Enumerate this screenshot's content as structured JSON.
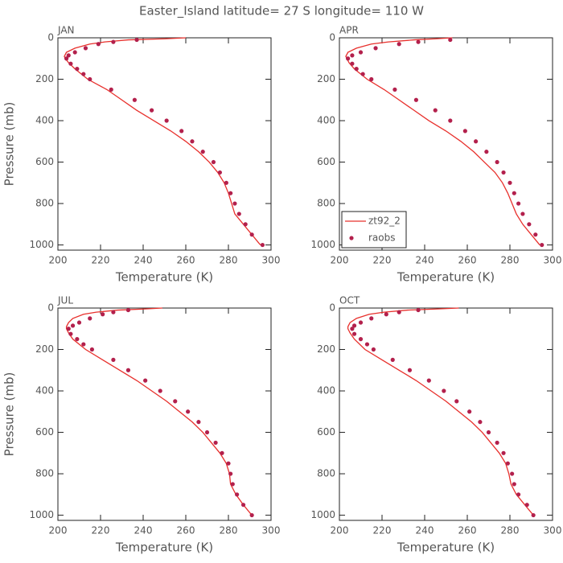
{
  "title": "Easter_Island  latitude= 27 S longitude= 110 W",
  "chart_data": [
    {
      "type": "line",
      "title": "JAN",
      "x_label": "Temperature (K)",
      "y_label": "Pressure (mb)",
      "xlim": [
        200,
        300
      ],
      "ylim": [
        1025,
        0
      ],
      "xticks": [
        200,
        220,
        240,
        260,
        280,
        300
      ],
      "yticks": [
        0,
        200,
        400,
        600,
        800,
        1000
      ],
      "series": [
        {
          "name": "zt92_2",
          "type": "line",
          "color": "#e8302c",
          "x": [
            260,
            250,
            233,
            222,
            215,
            208,
            204,
            203,
            203.5,
            205,
            208,
            214,
            223,
            230,
            237,
            245,
            253,
            260,
            266,
            271,
            275,
            278,
            280,
            281.5,
            283,
            287,
            291,
            295
          ],
          "y": [
            0,
            5,
            10,
            20,
            30,
            50,
            70,
            90,
            100,
            120,
            150,
            200,
            250,
            300,
            350,
            400,
            450,
            500,
            550,
            600,
            650,
            700,
            750,
            800,
            850,
            900,
            950,
            1000
          ]
        },
        {
          "name": "raobs",
          "type": "scatter",
          "color": "#b3204c",
          "x": [
            237,
            226,
            219,
            213,
            208,
            205,
            204,
            206,
            209,
            212,
            215,
            225,
            236,
            244,
            251,
            258,
            263,
            268,
            273,
            276,
            279,
            281,
            283,
            285,
            288,
            291,
            296
          ],
          "y": [
            10,
            20,
            30,
            50,
            70,
            85,
            100,
            125,
            150,
            175,
            200,
            250,
            300,
            350,
            400,
            450,
            500,
            550,
            600,
            650,
            700,
            750,
            800,
            850,
            900,
            950,
            1000
          ]
        }
      ]
    },
    {
      "type": "line",
      "title": "APR",
      "x_label": "Temperature (K)",
      "legend": "lower left",
      "xlim": [
        200,
        300
      ],
      "ylim": [
        1025,
        0
      ],
      "xticks": [
        200,
        220,
        240,
        260,
        280,
        300
      ],
      "yticks": [
        0,
        200,
        400,
        600,
        800,
        1000
      ],
      "series": [
        {
          "name": "zt92_2",
          "type": "line",
          "color": "#e8302c",
          "x": [
            253,
            245,
            235,
            223,
            215,
            208,
            204,
            203,
            203.5,
            204.5,
            207,
            213,
            221,
            228,
            235,
            242,
            250,
            257,
            263,
            268,
            273,
            276.5,
            279,
            281,
            283,
            286,
            290,
            294
          ],
          "y": [
            0,
            5,
            10,
            20,
            30,
            50,
            70,
            90,
            100,
            120,
            150,
            200,
            250,
            300,
            350,
            400,
            450,
            500,
            550,
            600,
            650,
            700,
            750,
            800,
            850,
            900,
            950,
            1000
          ]
        },
        {
          "name": "raobs",
          "type": "scatter",
          "color": "#b3204c",
          "x": [
            252,
            237,
            228,
            217,
            210,
            206,
            204,
            206,
            208,
            211,
            215,
            226,
            236,
            245,
            252,
            259,
            264,
            269,
            274,
            277,
            280,
            282,
            284,
            286,
            289,
            292,
            295
          ],
          "y": [
            10,
            20,
            30,
            50,
            70,
            85,
            100,
            125,
            150,
            175,
            200,
            250,
            300,
            350,
            400,
            450,
            500,
            550,
            600,
            650,
            700,
            750,
            800,
            850,
            900,
            950,
            1000
          ]
        }
      ]
    },
    {
      "type": "line",
      "title": "JUL",
      "x_label": "Temperature (K)",
      "y_label": "Pressure (mb)",
      "xlim": [
        200,
        300
      ],
      "ylim": [
        1025,
        0
      ],
      "xticks": [
        200,
        220,
        240,
        260,
        280,
        300
      ],
      "yticks": [
        0,
        200,
        400,
        600,
        800,
        1000
      ],
      "series": [
        {
          "name": "zt92_2",
          "type": "line",
          "color": "#e8302c",
          "x": [
            249,
            240,
            228,
            218,
            212,
            207,
            205,
            204,
            204,
            205,
            207,
            213,
            221,
            229,
            237,
            244,
            251,
            257,
            263,
            268,
            272,
            276,
            279,
            280.5,
            281,
            283.5,
            287,
            291
          ],
          "y": [
            0,
            5,
            10,
            20,
            30,
            50,
            70,
            90,
            100,
            120,
            150,
            200,
            250,
            300,
            350,
            400,
            450,
            500,
            550,
            600,
            650,
            700,
            750,
            800,
            850,
            900,
            950,
            1000
          ]
        },
        {
          "name": "raobs",
          "type": "scatter",
          "color": "#b3204c",
          "x": [
            233,
            226,
            221,
            215,
            210,
            207,
            205,
            206,
            209,
            212,
            216,
            226,
            233,
            241,
            248,
            255,
            261,
            266,
            270,
            274,
            277,
            280,
            281,
            282,
            284,
            287,
            291
          ],
          "y": [
            10,
            20,
            30,
            50,
            70,
            85,
            100,
            125,
            150,
            175,
            200,
            250,
            300,
            350,
            400,
            450,
            500,
            550,
            600,
            650,
            700,
            750,
            800,
            850,
            900,
            950,
            1000
          ]
        }
      ]
    },
    {
      "type": "line",
      "title": "OCT",
      "x_label": "Temperature (K)",
      "xlim": [
        200,
        300
      ],
      "ylim": [
        1025,
        0
      ],
      "xticks": [
        200,
        220,
        240,
        260,
        280,
        300
      ],
      "yticks": [
        0,
        200,
        400,
        600,
        800,
        1000
      ],
      "series": [
        {
          "name": "zt92_2",
          "type": "line",
          "color": "#e8302c",
          "x": [
            256,
            245,
            232,
            221,
            214,
            208,
            205,
            204,
            204,
            205,
            207,
            212,
            220,
            228,
            236,
            243,
            250,
            256,
            262,
            267,
            271,
            275,
            278,
            279.5,
            280.5,
            283,
            287,
            291
          ],
          "y": [
            0,
            5,
            10,
            20,
            30,
            50,
            70,
            90,
            100,
            120,
            150,
            200,
            250,
            300,
            350,
            400,
            450,
            500,
            550,
            600,
            650,
            700,
            750,
            800,
            850,
            900,
            950,
            1000
          ]
        },
        {
          "name": "raobs",
          "type": "scatter",
          "color": "#b3204c",
          "x": [
            237,
            228,
            222,
            215,
            210,
            207,
            206,
            207,
            210,
            213,
            216,
            225,
            233,
            242,
            249,
            255,
            261,
            266,
            270,
            274,
            277,
            279,
            281,
            282,
            284,
            288,
            291
          ],
          "y": [
            10,
            20,
            30,
            50,
            70,
            85,
            100,
            125,
            150,
            175,
            200,
            250,
            300,
            350,
            400,
            450,
            500,
            550,
            600,
            650,
            700,
            750,
            800,
            850,
            900,
            950,
            1000
          ]
        }
      ]
    }
  ]
}
